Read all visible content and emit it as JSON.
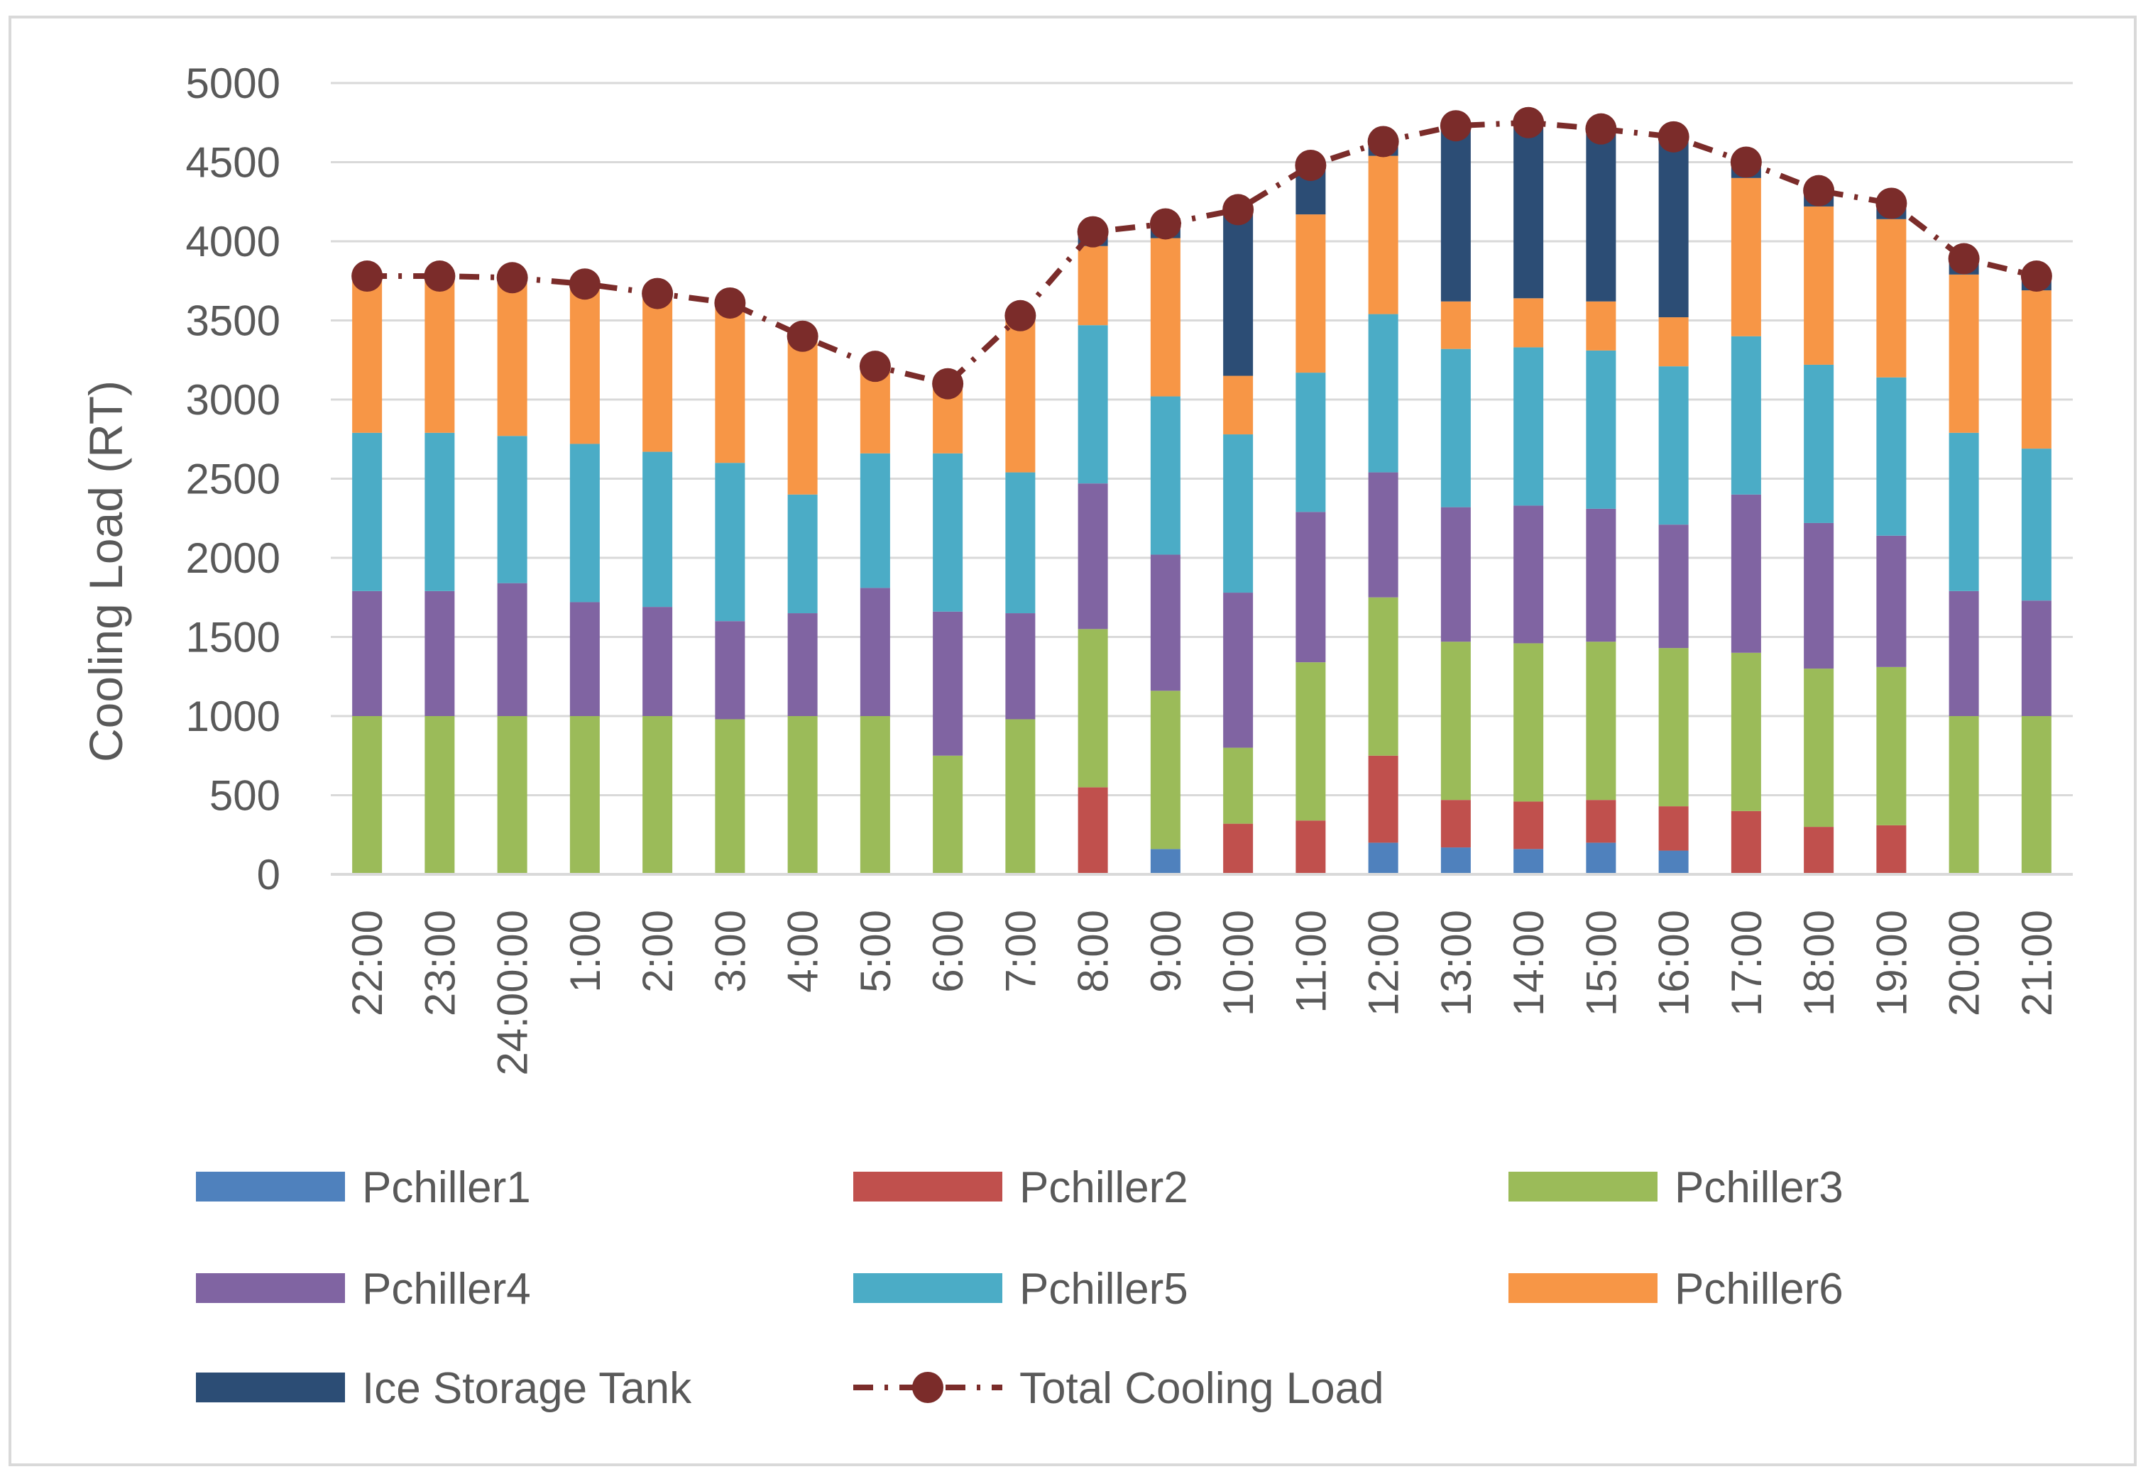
{
  "chart_data": {
    "type": "bar",
    "stacked": true,
    "title": "",
    "xlabel": "",
    "ylabel": "Cooling Load (RT)",
    "ylim": [
      0,
      5000
    ],
    "yticks": [
      0,
      500,
      1000,
      1500,
      2000,
      2500,
      3000,
      3500,
      4000,
      4500,
      5000
    ],
    "grid": true,
    "legend_position": "bottom",
    "categories": [
      "22:00",
      "23:00",
      "24:00:00",
      "1:00",
      "2:00",
      "3:00",
      "4:00",
      "5:00",
      "6:00",
      "7:00",
      "8:00",
      "9:00",
      "10:00",
      "11:00",
      "12:00",
      "13:00",
      "14:00",
      "15:00",
      "16:00",
      "17:00",
      "18:00",
      "19:00",
      "20:00",
      "21:00"
    ],
    "series": [
      {
        "name": "Pchiller1",
        "color": "#4F81BD",
        "type": "bar",
        "values": [
          0,
          0,
          0,
          0,
          0,
          0,
          0,
          0,
          0,
          0,
          0,
          160,
          0,
          0,
          200,
          170,
          160,
          200,
          150,
          0,
          0,
          0,
          0,
          0
        ]
      },
      {
        "name": "Pchiller2",
        "color": "#C0504D",
        "type": "bar",
        "values": [
          0,
          0,
          0,
          0,
          0,
          0,
          0,
          0,
          0,
          0,
          550,
          0,
          320,
          340,
          550,
          300,
          300,
          270,
          280,
          400,
          300,
          310,
          0,
          0
        ]
      },
      {
        "name": "Pchiller3",
        "color": "#9BBB59",
        "type": "bar",
        "values": [
          1000,
          1000,
          1000,
          1000,
          1000,
          980,
          1000,
          1000,
          750,
          980,
          1000,
          1000,
          480,
          1000,
          1000,
          1000,
          1000,
          1000,
          1000,
          1000,
          1000,
          1000,
          1000,
          1000
        ]
      },
      {
        "name": "Pchiller4",
        "color": "#8064A2",
        "type": "bar",
        "values": [
          790,
          790,
          840,
          720,
          690,
          620,
          650,
          810,
          910,
          670,
          920,
          860,
          980,
          950,
          790,
          850,
          870,
          840,
          780,
          1000,
          920,
          830,
          790,
          730
        ]
      },
      {
        "name": "Pchiller5",
        "color": "#4BACC6",
        "type": "bar",
        "values": [
          1000,
          1000,
          930,
          1000,
          980,
          1000,
          750,
          850,
          1000,
          890,
          1000,
          1000,
          1000,
          880,
          1000,
          1000,
          1000,
          1000,
          1000,
          1000,
          1000,
          1000,
          1000,
          960
        ]
      },
      {
        "name": "Pchiller6",
        "color": "#F79646",
        "type": "bar",
        "values": [
          1000,
          1000,
          1000,
          1000,
          1000,
          1000,
          1000,
          530,
          440,
          1000,
          500,
          1000,
          370,
          1000,
          1000,
          300,
          310,
          310,
          310,
          1000,
          1000,
          1000,
          1000,
          1000
        ]
      },
      {
        "name": "Ice Storage Tank",
        "color": "#2C4D75",
        "type": "bar",
        "values": [
          0,
          0,
          0,
          0,
          0,
          0,
          0,
          0,
          0,
          0,
          110,
          100,
          1070,
          290,
          90,
          1110,
          1100,
          1100,
          1140,
          100,
          110,
          100,
          100,
          100
        ]
      },
      {
        "name": "Total Cooling Load",
        "color": "#7B2C2A",
        "type": "line",
        "values": [
          3780,
          3780,
          3770,
          3730,
          3670,
          3610,
          3400,
          3210,
          3100,
          3530,
          4060,
          4110,
          4200,
          4480,
          4630,
          4730,
          4750,
          4710,
          4660,
          4500,
          4320,
          4240,
          3890,
          3780
        ]
      }
    ]
  }
}
